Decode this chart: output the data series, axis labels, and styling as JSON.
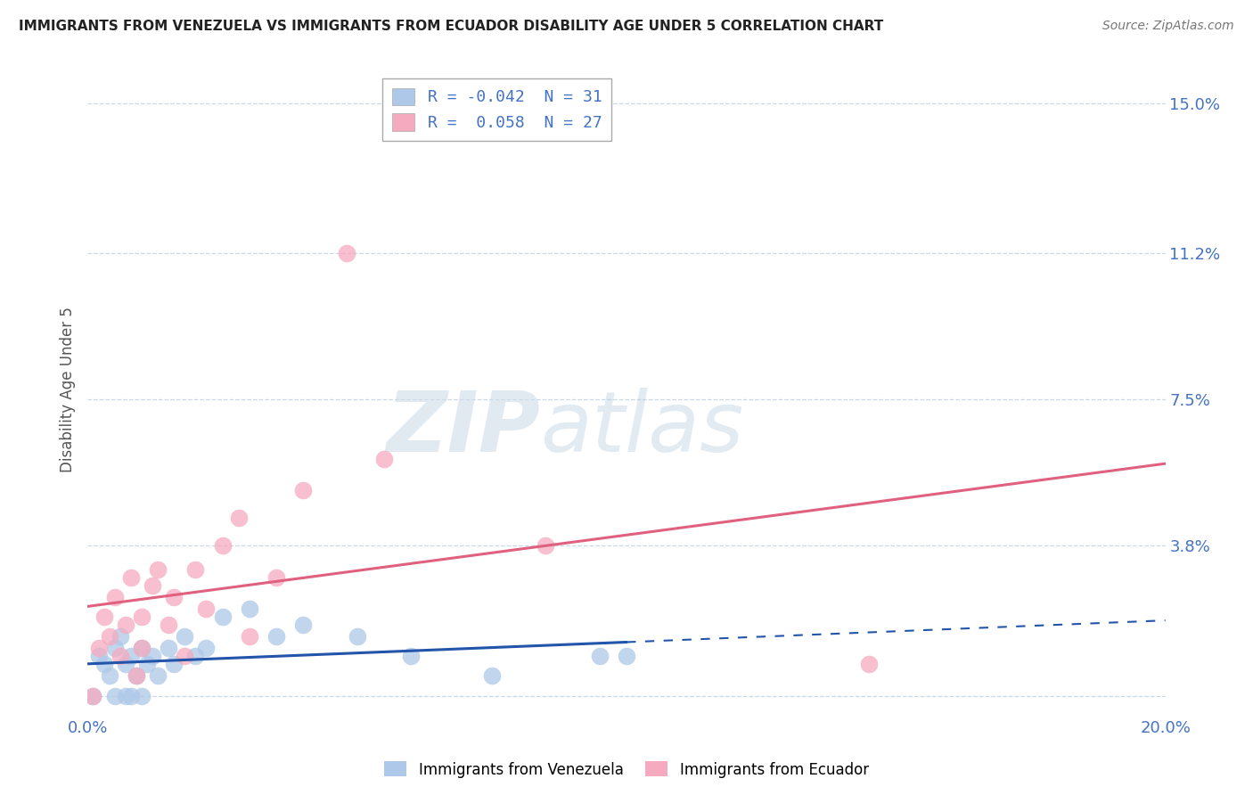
{
  "title": "IMMIGRANTS FROM VENEZUELA VS IMMIGRANTS FROM ECUADOR DISABILITY AGE UNDER 5 CORRELATION CHART",
  "source": "Source: ZipAtlas.com",
  "ylabel": "Disability Age Under 5",
  "xlim": [
    0.0,
    0.2
  ],
  "ylim": [
    -0.005,
    0.16
  ],
  "yticks": [
    0.0,
    0.038,
    0.075,
    0.112,
    0.15
  ],
  "ytick_labels": [
    "",
    "3.8%",
    "7.5%",
    "11.2%",
    "15.0%"
  ],
  "xtick_labels": [
    "0.0%",
    "20.0%"
  ],
  "xticks": [
    0.0,
    0.2
  ],
  "legend_r1": "R = -0.042  N = 31",
  "legend_r2": "R =  0.058  N = 27",
  "color_venezuela": "#adc8e8",
  "color_ecuador": "#f5aabf",
  "line_color_venezuela": "#2255aa",
  "line_color_ecuador": "#e06080",
  "background_color": "#ffffff",
  "grid_color": "#c8d8e8",
  "watermark_zip": "ZIP",
  "watermark_atlas": "atlas",
  "venezuela_x": [
    0.001,
    0.002,
    0.003,
    0.004,
    0.005,
    0.005,
    0.006,
    0.007,
    0.007,
    0.008,
    0.008,
    0.009,
    0.01,
    0.01,
    0.011,
    0.012,
    0.013,
    0.015,
    0.016,
    0.018,
    0.02,
    0.022,
    0.025,
    0.03,
    0.035,
    0.04,
    0.05,
    0.06,
    0.075,
    0.095,
    0.1
  ],
  "venezuela_y": [
    0.0,
    0.01,
    0.008,
    0.005,
    0.012,
    0.0,
    0.015,
    0.008,
    0.0,
    0.01,
    0.0,
    0.005,
    0.012,
    0.0,
    0.008,
    0.01,
    0.005,
    0.012,
    0.008,
    0.015,
    0.01,
    0.012,
    0.02,
    0.022,
    0.015,
    0.018,
    0.015,
    0.01,
    0.005,
    0.01,
    0.01
  ],
  "ecuador_x": [
    0.001,
    0.002,
    0.003,
    0.004,
    0.005,
    0.006,
    0.007,
    0.008,
    0.009,
    0.01,
    0.01,
    0.012,
    0.013,
    0.015,
    0.016,
    0.018,
    0.02,
    0.022,
    0.025,
    0.028,
    0.03,
    0.035,
    0.04,
    0.048,
    0.055,
    0.085,
    0.145
  ],
  "ecuador_y": [
    0.0,
    0.012,
    0.02,
    0.015,
    0.025,
    0.01,
    0.018,
    0.03,
    0.005,
    0.02,
    0.012,
    0.028,
    0.032,
    0.018,
    0.025,
    0.01,
    0.032,
    0.022,
    0.038,
    0.045,
    0.015,
    0.03,
    0.052,
    0.112,
    0.06,
    0.038,
    0.008
  ],
  "ven_line_solid_end": 0.1,
  "ecu_line_solid_end": 0.2
}
